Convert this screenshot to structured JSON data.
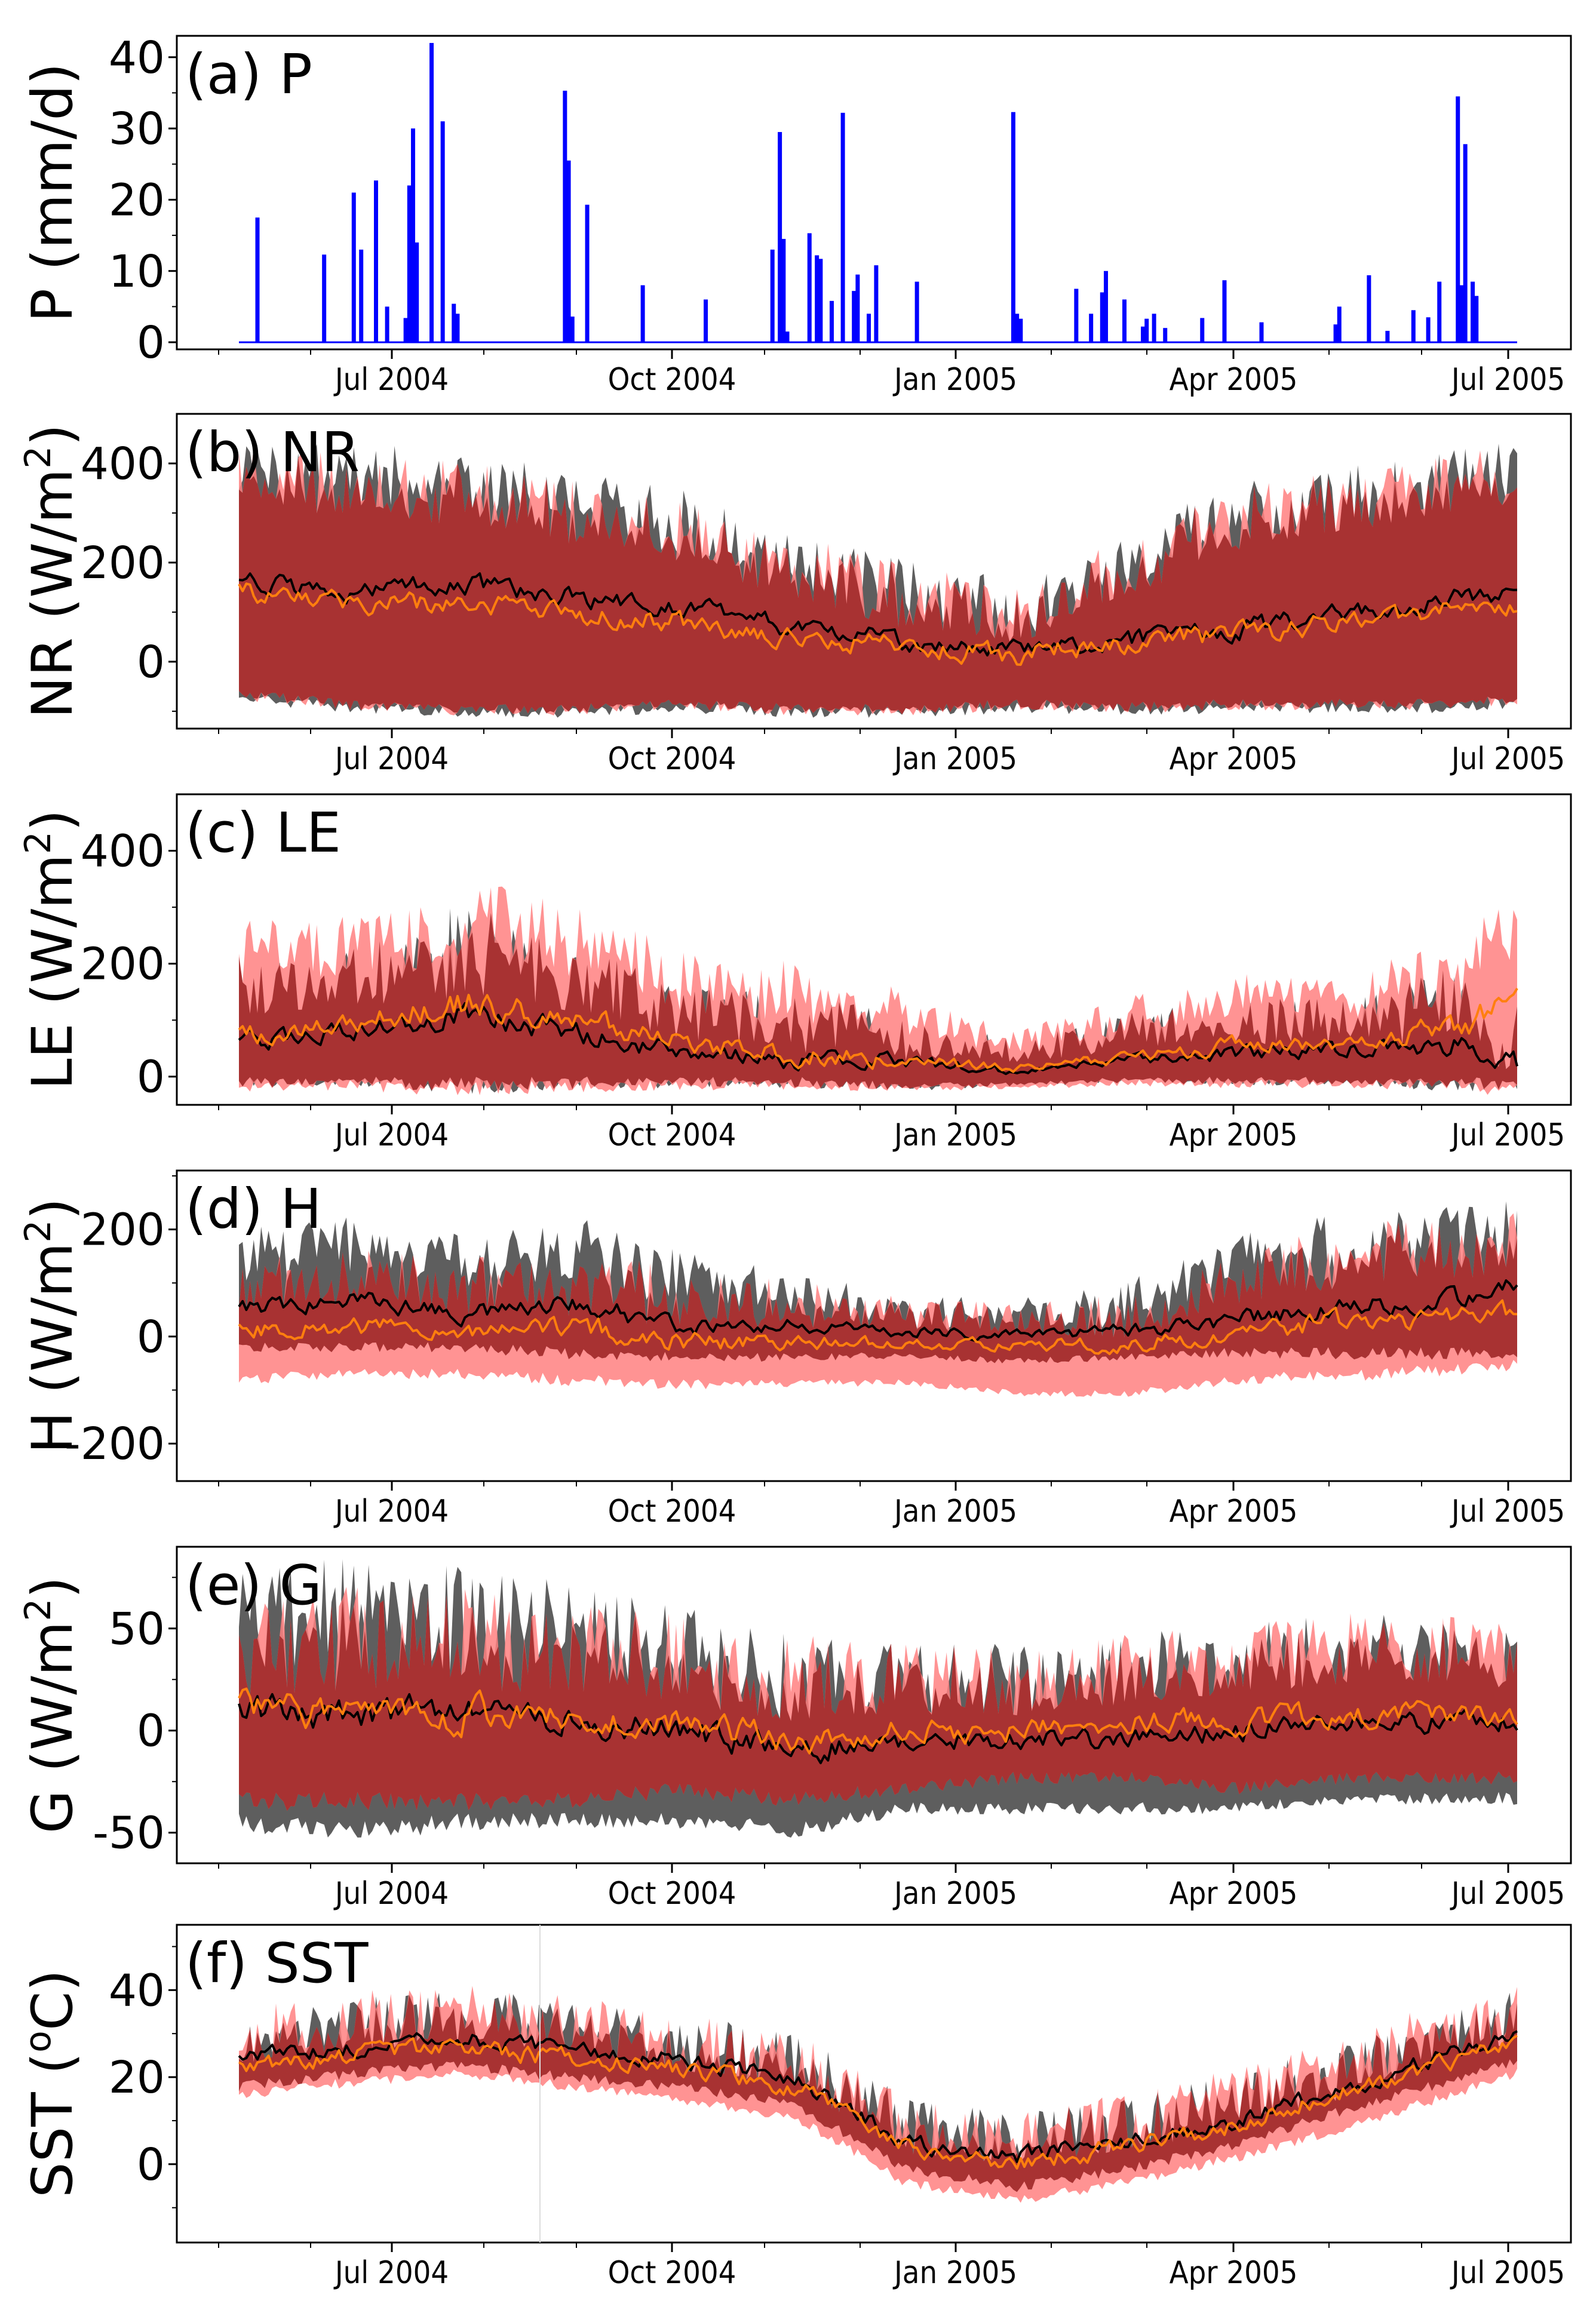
{
  "figure": {
    "x_axis_labels": [
      "Jul 2004",
      "Oct 2004",
      "Jan 2005",
      "Apr 2005",
      "Jul 2005"
    ]
  },
  "colors": {
    "precip": "#0000ff",
    "obs_band": "#555555",
    "model_band": "#ff8080",
    "overlap_band": "#a83232",
    "obs_line": "#000000",
    "model_line": "#ff7f0e"
  },
  "chart_data": [
    {
      "type": "bar",
      "panel": "(a) P",
      "ylabel": "P (mm/d)",
      "ylim": [
        -1,
        43
      ],
      "yticks": [
        "0",
        "10",
        "20",
        "30",
        "40"
      ],
      "xticks": [
        "Jul 2004",
        "Oct 2004",
        "Jan 2005",
        "Apr 2005",
        "Jul 2005"
      ],
      "events": [
        {
          "day": 5,
          "value": 17.5
        },
        {
          "day": 23,
          "value": 12.3
        },
        {
          "day": 31,
          "value": 21
        },
        {
          "day": 33,
          "value": 13
        },
        {
          "day": 37,
          "value": 22.7
        },
        {
          "day": 40,
          "value": 5
        },
        {
          "day": 45,
          "value": 3.4
        },
        {
          "day": 46,
          "value": 22
        },
        {
          "day": 47,
          "value": 30
        },
        {
          "day": 48,
          "value": 14
        },
        {
          "day": 52,
          "value": 42
        },
        {
          "day": 55,
          "value": 31
        },
        {
          "day": 58,
          "value": 5.4
        },
        {
          "day": 59,
          "value": 4
        },
        {
          "day": 88,
          "value": 35.3
        },
        {
          "day": 89,
          "value": 25.5
        },
        {
          "day": 90,
          "value": 3.6
        },
        {
          "day": 94,
          "value": 19.3
        },
        {
          "day": 109,
          "value": 8
        },
        {
          "day": 126,
          "value": 6
        },
        {
          "day": 144,
          "value": 13
        },
        {
          "day": 146,
          "value": 29.5
        },
        {
          "day": 147,
          "value": 14.5
        },
        {
          "day": 148,
          "value": 1.5
        },
        {
          "day": 154,
          "value": 15.3
        },
        {
          "day": 156,
          "value": 12.2
        },
        {
          "day": 157,
          "value": 11.7
        },
        {
          "day": 160,
          "value": 5.8
        },
        {
          "day": 163,
          "value": 32.2
        },
        {
          "day": 166,
          "value": 7.2
        },
        {
          "day": 167,
          "value": 9.5
        },
        {
          "day": 170,
          "value": 4
        },
        {
          "day": 172,
          "value": 10.8
        },
        {
          "day": 183,
          "value": 8.5
        },
        {
          "day": 209,
          "value": 32.3
        },
        {
          "day": 210,
          "value": 4
        },
        {
          "day": 211,
          "value": 3.3
        },
        {
          "day": 226,
          "value": 7.5
        },
        {
          "day": 230,
          "value": 4
        },
        {
          "day": 233,
          "value": 7
        },
        {
          "day": 234,
          "value": 10
        },
        {
          "day": 239,
          "value": 6
        },
        {
          "day": 244,
          "value": 2.2
        },
        {
          "day": 245,
          "value": 3.3
        },
        {
          "day": 247,
          "value": 4
        },
        {
          "day": 250,
          "value": 2
        },
        {
          "day": 260,
          "value": 3.4
        },
        {
          "day": 266,
          "value": 8.7
        },
        {
          "day": 276,
          "value": 2.8
        },
        {
          "day": 296,
          "value": 2.5
        },
        {
          "day": 297,
          "value": 5
        },
        {
          "day": 305,
          "value": 9.4
        },
        {
          "day": 310,
          "value": 1.6
        },
        {
          "day": 317,
          "value": 4.5
        },
        {
          "day": 321,
          "value": 3.5
        },
        {
          "day": 324,
          "value": 8.5
        },
        {
          "day": 329,
          "value": 34.5
        },
        {
          "day": 330,
          "value": 8
        },
        {
          "day": 331,
          "value": 27.8
        },
        {
          "day": 333,
          "value": 8.5
        },
        {
          "day": 334,
          "value": 6.5
        }
      ]
    },
    {
      "type": "area",
      "panel": "(b) NR",
      "ylabel": "NR (W/m2)",
      "ylim": [
        -135,
        500
      ],
      "yticks": [
        "0",
        "200",
        "400"
      ],
      "xticks": [
        "Jul 2004",
        "Oct 2004",
        "Jan 2005",
        "Apr 2005",
        "Jul 2005"
      ],
      "x_day": [
        0,
        30,
        60,
        90,
        120,
        150,
        180,
        210,
        240,
        270,
        300,
        330,
        345
      ],
      "obs_mean": [
        160,
        140,
        160,
        130,
        110,
        70,
        40,
        20,
        45,
        65,
        100,
        130,
        145
      ],
      "model_mean": [
        140,
        115,
        120,
        100,
        80,
        50,
        30,
        15,
        40,
        55,
        80,
        110,
        120
      ],
      "obs_lower": [
        -60,
        -80,
        -90,
        -90,
        -80,
        -90,
        -90,
        -80,
        -85,
        -80,
        -80,
        -80,
        -70
      ],
      "obs_upper": [
        380,
        380,
        360,
        320,
        280,
        200,
        140,
        100,
        200,
        300,
        330,
        370,
        380
      ],
      "model_lower": [
        -55,
        -75,
        -85,
        -85,
        -75,
        -85,
        -85,
        -75,
        -80,
        -75,
        -75,
        -75,
        -65
      ],
      "model_upper": [
        370,
        360,
        340,
        300,
        260,
        190,
        130,
        95,
        190,
        290,
        320,
        360,
        370
      ],
      "noise": [
        30,
        30,
        30,
        30,
        30,
        30,
        30,
        30,
        30,
        30,
        30,
        30,
        30
      ]
    },
    {
      "type": "area",
      "panel": "(c) LE",
      "ylabel": "LE (W/m2)",
      "ylim": [
        -50,
        500
      ],
      "yticks": [
        "0",
        "200",
        "400"
      ],
      "xticks": [
        "Jul 2004",
        "Oct 2004",
        "Jan 2005",
        "Apr 2005",
        "Jul 2005"
      ],
      "x_day": [
        0,
        30,
        60,
        90,
        120,
        150,
        180,
        210,
        240,
        270,
        300,
        330,
        345
      ],
      "obs_mean": [
        60,
        80,
        110,
        80,
        40,
        30,
        25,
        10,
        25,
        40,
        50,
        60,
        30
      ],
      "model_mean": [
        70,
        95,
        130,
        100,
        60,
        40,
        30,
        15,
        35,
        55,
        60,
        90,
        130
      ],
      "obs_lower": [
        0,
        0,
        0,
        0,
        0,
        0,
        -10,
        -10,
        0,
        0,
        0,
        0,
        0
      ],
      "obs_upper": [
        160,
        180,
        220,
        180,
        110,
        90,
        70,
        40,
        80,
        100,
        100,
        120,
        80
      ],
      "model_lower": [
        -10,
        -5,
        -5,
        -5,
        -5,
        -5,
        -10,
        -15,
        -5,
        -5,
        -5,
        -5,
        -10
      ],
      "model_upper": [
        220,
        230,
        280,
        240,
        170,
        150,
        110,
        60,
        110,
        150,
        140,
        200,
        280
      ],
      "noise": [
        25,
        25,
        40,
        30,
        25,
        25,
        20,
        10,
        15,
        20,
        20,
        35,
        35
      ]
    },
    {
      "type": "area",
      "panel": "(d) H",
      "ylabel": "H (W/m2)",
      "ylim": [
        -270,
        310
      ],
      "yticks": [
        "-200",
        "0",
        "200"
      ],
      "xticks": [
        "Jul 2004",
        "Oct 2004",
        "Jan 2005",
        "Apr 2005",
        "Jul 2005"
      ],
      "x_day": [
        0,
        30,
        60,
        90,
        120,
        150,
        180,
        210,
        240,
        270,
        300,
        330,
        345
      ],
      "obs_mean": [
        50,
        70,
        40,
        60,
        20,
        20,
        10,
        5,
        10,
        30,
        60,
        70,
        100
      ],
      "model_mean": [
        10,
        20,
        10,
        20,
        -10,
        -10,
        -15,
        -15,
        -15,
        10,
        30,
        30,
        40
      ],
      "obs_lower": [
        -10,
        -10,
        -10,
        -20,
        -30,
        -30,
        -30,
        -40,
        -30,
        -20,
        -20,
        -20,
        -30
      ],
      "obs_upper": [
        150,
        170,
        140,
        160,
        110,
        80,
        50,
        40,
        60,
        140,
        170,
        180,
        200
      ],
      "model_lower": [
        -70,
        -60,
        -60,
        -70,
        -80,
        -80,
        -80,
        -100,
        -100,
        -70,
        -60,
        -50,
        -40
      ],
      "model_upper": [
        100,
        110,
        90,
        100,
        70,
        60,
        40,
        30,
        40,
        110,
        150,
        160,
        170
      ],
      "noise": [
        25,
        25,
        25,
        30,
        25,
        20,
        15,
        15,
        20,
        25,
        30,
        30,
        30
      ]
    },
    {
      "type": "area",
      "panel": "(e) G",
      "ylabel": "G (W/m2)",
      "ylim": [
        -65,
        90
      ],
      "yticks": [
        "-50",
        "0",
        "50"
      ],
      "xticks": [
        "Jul 2004",
        "Oct 2004",
        "Jan 2005",
        "Apr 2005",
        "Jul 2005"
      ],
      "x_day": [
        0,
        30,
        60,
        90,
        120,
        150,
        180,
        210,
        240,
        270,
        300,
        330,
        345
      ],
      "obs_mean": [
        10,
        8,
        8,
        5,
        0,
        -10,
        -5,
        -5,
        -5,
        0,
        5,
        5,
        5
      ],
      "model_mean": [
        10,
        10,
        8,
        8,
        3,
        -5,
        0,
        0,
        5,
        5,
        8,
        8,
        8
      ],
      "obs_lower": [
        -40,
        -45,
        -40,
        -40,
        -40,
        -45,
        -35,
        -35,
        -35,
        -35,
        -30,
        -30,
        -30
      ],
      "obs_upper": [
        55,
        60,
        55,
        50,
        40,
        25,
        25,
        25,
        30,
        35,
        40,
        40,
        35
      ],
      "model_lower": [
        -30,
        -30,
        -30,
        -30,
        -25,
        -30,
        -25,
        -20,
        -20,
        -25,
        -20,
        -20,
        -20
      ],
      "model_upper": [
        40,
        45,
        45,
        40,
        35,
        25,
        25,
        25,
        30,
        35,
        40,
        40,
        35
      ],
      "noise": [
        12,
        12,
        12,
        10,
        10,
        10,
        8,
        8,
        8,
        8,
        8,
        8,
        8
      ]
    },
    {
      "type": "area",
      "panel": "(f) SST",
      "ylabel": "SST (oC)",
      "ylim": [
        -18,
        55
      ],
      "yticks": [
        "0",
        "20",
        "40"
      ],
      "xticks": [
        "Jul 2004",
        "Oct 2004",
        "Jan 2005",
        "Apr 2005",
        "Jul 2005"
      ],
      "x_day": [
        0,
        30,
        60,
        90,
        120,
        150,
        180,
        210,
        240,
        270,
        300,
        330,
        345
      ],
      "obs_mean": [
        24,
        27,
        29,
        26,
        24,
        20,
        5,
        2,
        5,
        10,
        18,
        26,
        30
      ],
      "model_mean": [
        22,
        25,
        27,
        24,
        22,
        18,
        4,
        0,
        4,
        9,
        17,
        24,
        28
      ],
      "obs_lower": [
        19,
        22,
        24,
        21,
        19,
        15,
        0,
        -4,
        0,
        6,
        14,
        21,
        25
      ],
      "obs_upper": [
        29,
        32,
        34,
        31,
        28,
        24,
        9,
        6,
        9,
        15,
        22,
        30,
        34
      ],
      "model_lower": [
        17,
        20,
        22,
        19,
        16,
        12,
        -3,
        -7,
        -3,
        3,
        10,
        18,
        22
      ],
      "model_upper": [
        30,
        33,
        35,
        32,
        28,
        24,
        9,
        5,
        10,
        16,
        24,
        32,
        36
      ],
      "noise": [
        3,
        3,
        3,
        3,
        3,
        3,
        3,
        3,
        3,
        3,
        3,
        3,
        3
      ]
    }
  ]
}
